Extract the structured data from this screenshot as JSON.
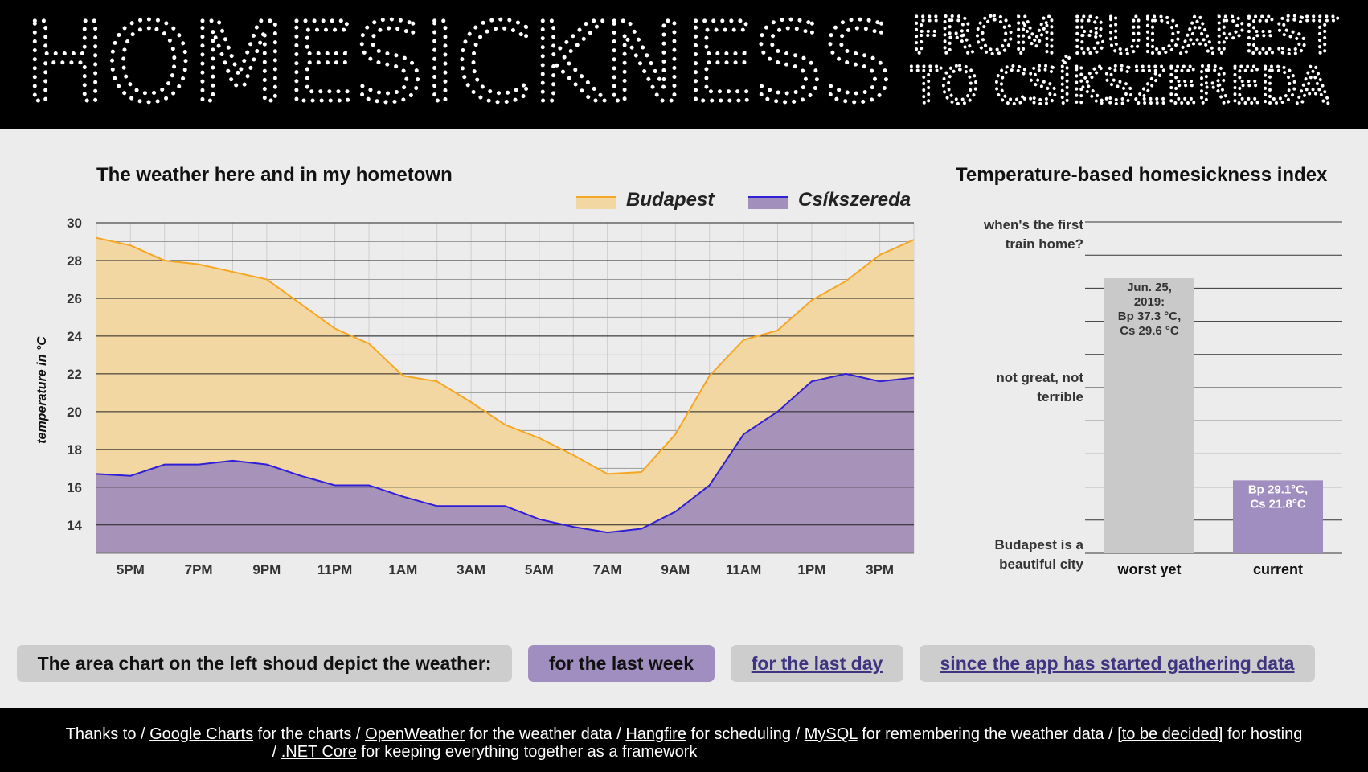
{
  "header": {
    "big_title": "HOMESICKNESS",
    "subtitle_line1": "FROM BUDAPEST",
    "subtitle_line2": "TO CSÍKSZEREDA"
  },
  "area_chart": {
    "title": "The weather here and in my hometown"
  },
  "bar_chart": {
    "title": "Temperature-based homesickness index"
  },
  "chart_data": [
    {
      "type": "area",
      "title": "The weather here and in my hometown",
      "xlabel": "",
      "ylabel": "temperature in °C",
      "ylim": [
        12.5,
        30
      ],
      "yticks": [
        14,
        16,
        18,
        20,
        22,
        24,
        26,
        28,
        30
      ],
      "grid": true,
      "legend_position": "top-right",
      "x_tick_labels": [
        "5PM",
        "7PM",
        "9PM",
        "11PM",
        "1AM",
        "3AM",
        "5AM",
        "7AM",
        "9AM",
        "11AM",
        "1PM",
        "3PM"
      ],
      "series": [
        {
          "name": "Budapest",
          "color": "#f5a623",
          "fill": "#f3d7a2",
          "values": [
            29.2,
            28.8,
            28.0,
            27.8,
            27.4,
            27.0,
            25.7,
            24.4,
            23.6,
            21.9,
            21.6,
            20.5,
            19.3,
            18.6,
            17.7,
            16.7,
            16.8,
            18.8,
            21.9,
            23.8,
            24.3,
            25.9,
            26.9,
            28.3,
            29.1
          ]
        },
        {
          "name": "Csíkszereda",
          "color": "#2f1fd6",
          "fill": "#a28fbc",
          "values": [
            16.7,
            16.6,
            17.2,
            17.2,
            17.4,
            17.2,
            16.6,
            16.1,
            16.1,
            15.5,
            15.0,
            15.0,
            15.0,
            14.3,
            13.9,
            13.6,
            13.8,
            14.7,
            16.1,
            18.8,
            20.0,
            21.6,
            22.0,
            21.6,
            21.8
          ]
        }
      ]
    },
    {
      "type": "bar",
      "title": "Temperature-based homesickness index",
      "categories": [
        "worst yet",
        "current"
      ],
      "values": [
        8.3,
        2.2
      ],
      "ylim": [
        0,
        10
      ],
      "y_text_labels": [
        {
          "value": 10,
          "lines": [
            "when's the first",
            "train home?"
          ]
        },
        {
          "value": 5,
          "lines": [
            "not great, not",
            "terrible"
          ]
        },
        {
          "value": 0,
          "lines": [
            "Budapest is a",
            "beautiful city"
          ]
        }
      ],
      "bar_colors": [
        "#c9c9c9",
        "#a08ec0"
      ],
      "data_labels": [
        [
          "Jun. 25,",
          "2019:",
          "Bp 37.3 °C,",
          "Cs 29.6 °C"
        ],
        [
          "Bp 29.1°C,",
          "Cs 21.8°C"
        ]
      ]
    }
  ],
  "controls": {
    "label": "The area chart on the left shoud depict the weather:",
    "week": "for the last week",
    "day": "for the last day",
    "since": "since the app has started gathering data"
  },
  "footer": {
    "thanks": "Thanks to /",
    "gc_link": "Google Charts",
    "gc_text": "for the charts /",
    "ow_link": "OpenWeather",
    "ow_text": "for the weather data /",
    "hf_link": "Hangfire",
    "hf_text": "for scheduling /",
    "my_link": "MySQL",
    "my_text": "for remembering the weather data /",
    "tbd_link": "[to be decided]",
    "tbd_text": "for hosting",
    "slash": "/",
    "net_link": ".NET Core",
    "net_text": "for keeping everything together as a framework"
  }
}
